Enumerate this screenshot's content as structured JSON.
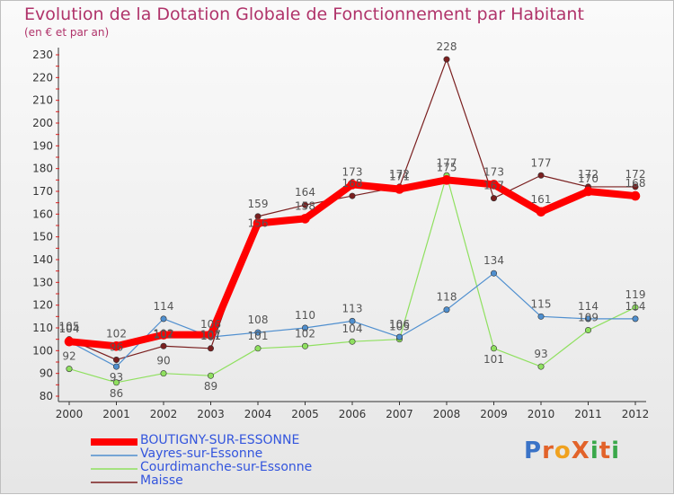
{
  "chart_data": {
    "type": "line",
    "title": "Evolution de la Dotation Globale de Fonctionnement par Habitant",
    "subtitle": "(en € et par an)",
    "xlabel": "",
    "ylabel": "",
    "categories": [
      "2000",
      "2001",
      "2002",
      "2003",
      "2004",
      "2005",
      "2006",
      "2007",
      "2008",
      "2009",
      "2010",
      "2011",
      "2012"
    ],
    "ylim": [
      80,
      230
    ],
    "yticks": [
      "80",
      "90",
      "100",
      "110",
      "120",
      "130",
      "140",
      "150",
      "160",
      "170",
      "180",
      "190",
      "200",
      "210",
      "220",
      "230"
    ],
    "grid": false,
    "series": [
      {
        "name": "BOUTIGNY-SUR-ESSONNE",
        "color": "#ff0000",
        "values": [
          104,
          102,
          107,
          107,
          156,
          158,
          173,
          171,
          175,
          173,
          161,
          170,
          168
        ]
      },
      {
        "name": "Vayres-sur-Essonne",
        "color": "#4f8fcf",
        "values": [
          104,
          93,
          114,
          106,
          108,
          110,
          113,
          106,
          118,
          134,
          115,
          114,
          114
        ]
      },
      {
        "name": "Courdimanche-sur-Essonne",
        "color": "#8fe05f",
        "values": [
          92,
          86,
          90,
          89,
          101,
          102,
          104,
          105,
          177,
          101,
          93,
          109,
          119
        ]
      },
      {
        "name": "Maisse",
        "color": "#7a1f1f",
        "values": [
          105,
          96,
          102,
          101,
          159,
          164,
          168,
          172,
          228,
          167,
          177,
          172,
          172
        ]
      }
    ]
  },
  "logo": {
    "text": "ProXiti"
  }
}
